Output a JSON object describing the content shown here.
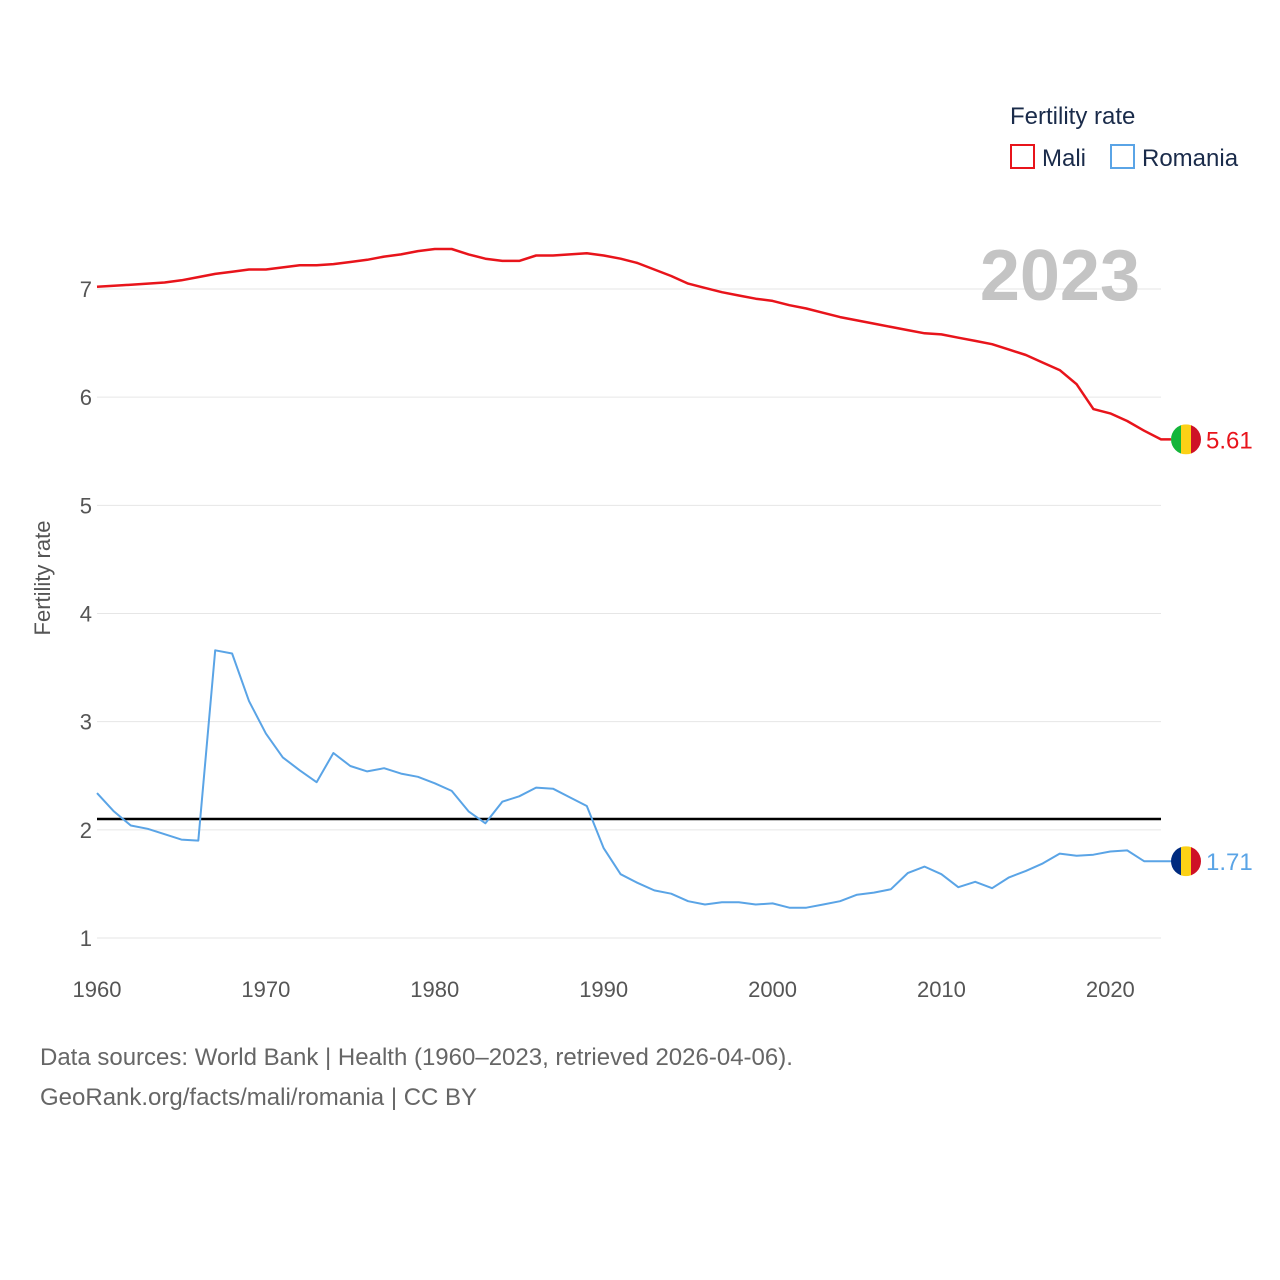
{
  "chart_data": {
    "type": "line",
    "title": "",
    "year_label": "2023",
    "ylabel": "Fertility rate",
    "xlabel": "",
    "xlim": [
      1960,
      2023
    ],
    "ylim": [
      0.6,
      7.9
    ],
    "x_ticks": [
      1960,
      1970,
      1980,
      1990,
      2000,
      2010,
      2020
    ],
    "y_ticks": [
      1,
      2,
      3,
      4,
      5,
      6,
      7
    ],
    "reference_line": 2.1,
    "legend": {
      "title": "Fertility rate",
      "placement": "top-right"
    },
    "x": [
      1960,
      1961,
      1962,
      1963,
      1964,
      1965,
      1966,
      1967,
      1968,
      1969,
      1970,
      1971,
      1972,
      1973,
      1974,
      1975,
      1976,
      1977,
      1978,
      1979,
      1980,
      1981,
      1982,
      1983,
      1984,
      1985,
      1986,
      1987,
      1988,
      1989,
      1990,
      1991,
      1992,
      1993,
      1994,
      1995,
      1996,
      1997,
      1998,
      1999,
      2000,
      2001,
      2002,
      2003,
      2004,
      2005,
      2006,
      2007,
      2008,
      2009,
      2010,
      2011,
      2012,
      2013,
      2014,
      2015,
      2016,
      2017,
      2018,
      2019,
      2020,
      2021,
      2022,
      2023
    ],
    "series": [
      {
        "name": "Mali",
        "color": "#e8141b",
        "end_label": "5.61",
        "values": [
          7.02,
          7.03,
          7.04,
          7.05,
          7.06,
          7.08,
          7.11,
          7.14,
          7.16,
          7.18,
          7.18,
          7.2,
          7.22,
          7.22,
          7.23,
          7.25,
          7.27,
          7.3,
          7.32,
          7.35,
          7.37,
          7.37,
          7.32,
          7.28,
          7.26,
          7.26,
          7.31,
          7.31,
          7.32,
          7.33,
          7.31,
          7.28,
          7.24,
          7.18,
          7.12,
          7.05,
          7.01,
          6.97,
          6.94,
          6.91,
          6.89,
          6.85,
          6.82,
          6.78,
          6.74,
          6.71,
          6.68,
          6.65,
          6.62,
          6.59,
          6.58,
          6.55,
          6.52,
          6.49,
          6.44,
          6.39,
          6.32,
          6.25,
          6.12,
          5.89,
          5.85,
          5.78,
          5.69,
          5.61
        ]
      },
      {
        "name": "Romania",
        "color": "#5aa4e6",
        "end_label": "1.71",
        "values": [
          2.34,
          2.17,
          2.04,
          2.01,
          1.96,
          1.91,
          1.9,
          3.66,
          3.63,
          3.19,
          2.89,
          2.67,
          2.55,
          2.44,
          2.71,
          2.59,
          2.54,
          2.57,
          2.52,
          2.49,
          2.43,
          2.36,
          2.17,
          2.06,
          2.26,
          2.31,
          2.39,
          2.38,
          2.3,
          2.22,
          1.83,
          1.59,
          1.51,
          1.44,
          1.41,
          1.34,
          1.31,
          1.33,
          1.33,
          1.31,
          1.32,
          1.28,
          1.28,
          1.31,
          1.34,
          1.4,
          1.42,
          1.45,
          1.6,
          1.66,
          1.59,
          1.47,
          1.52,
          1.46,
          1.56,
          1.62,
          1.69,
          1.78,
          1.76,
          1.77,
          1.8,
          1.81,
          1.71,
          1.71
        ]
      }
    ]
  },
  "footer": {
    "sources": "Data sources: World Bank | Health (1960–2023, retrieved 2026-04-06).",
    "attribution": "GeoRank.org/facts/mali/romania | CC BY"
  }
}
